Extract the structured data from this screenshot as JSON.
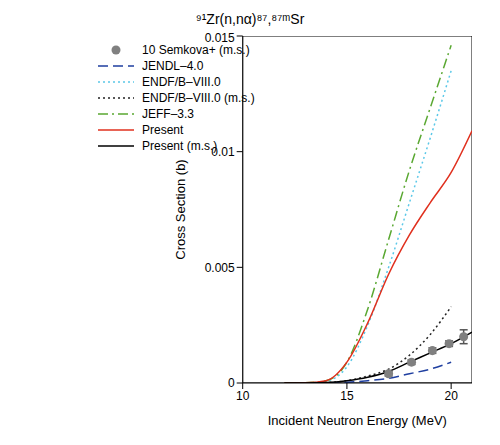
{
  "chart_data": {
    "type": "line",
    "title": "⁹¹Zr(n,nα)⁸⁷,⁸⁷ᵐSr",
    "x_label": "Incident Neutron Energy (MeV)",
    "y_label": "Cross Section (b)",
    "xlim": [
      10,
      21
    ],
    "xticks": [
      10,
      15,
      20
    ],
    "ylim": [
      0,
      0.015
    ],
    "yticks": [
      0,
      0.005,
      0.01,
      0.015
    ],
    "legend": "upper left",
    "series": [
      {
        "name": "10 Semkova+ (m.s.)",
        "type": "scatter",
        "marker": "circle",
        "color": "#808080",
        "x": [
          17.0,
          18.1,
          19.1,
          19.9,
          20.6
        ],
        "values": [
          0.0004,
          0.0009,
          0.0014,
          0.0017,
          0.002
        ],
        "errors": [
          0.0001,
          0.0001,
          0.00012,
          0.00012,
          0.0003
        ]
      },
      {
        "name": "JENDL–4.0",
        "type": "line",
        "line_style": "dashed",
        "color": "#1f3fa0",
        "x": [
          12,
          13,
          14,
          15,
          16,
          17,
          18,
          19,
          20
        ],
        "values": [
          0,
          0,
          1e-05,
          3e-05,
          0.0001,
          0.0002,
          0.0004,
          0.0006,
          0.0009
        ]
      },
      {
        "name": "ENDF/B–VIII.0",
        "type": "line",
        "line_style": "dotted",
        "color": "#5bc8e8",
        "x": [
          12,
          13,
          14,
          15,
          16,
          17,
          18,
          19,
          20
        ],
        "values": [
          0,
          1e-05,
          8e-05,
          0.0007,
          0.0025,
          0.005,
          0.0078,
          0.0106,
          0.0135
        ]
      },
      {
        "name": "ENDF/B–VIII.0 (m.s.)",
        "type": "line",
        "line_style": "dotted",
        "color": "#222222",
        "x": [
          12,
          13,
          14,
          15,
          16,
          17,
          18,
          19,
          20
        ],
        "values": [
          0,
          0,
          2e-05,
          0.0001,
          0.0003,
          0.0006,
          0.0012,
          0.0021,
          0.0033
        ]
      },
      {
        "name": "JEFF–3.3",
        "type": "line",
        "line_style": "dashdot",
        "color": "#5aa832",
        "x": [
          12,
          13,
          14,
          15,
          16,
          17,
          18,
          19,
          20
        ],
        "values": [
          0,
          1e-05,
          0.0001,
          0.0009,
          0.0032,
          0.0062,
          0.0092,
          0.0119,
          0.0146
        ]
      },
      {
        "name": "Present",
        "type": "line",
        "line_style": "solid",
        "color": "#e0301e",
        "x": [
          12,
          13,
          14,
          15,
          16,
          17,
          18,
          19,
          20,
          21
        ],
        "values": [
          0,
          1e-05,
          0.0001,
          0.0009,
          0.0026,
          0.0047,
          0.0064,
          0.0078,
          0.0091,
          0.0109
        ]
      },
      {
        "name": "Present (m.s.)",
        "type": "line",
        "line_style": "solid",
        "color": "#000000",
        "x": [
          12,
          13,
          14,
          15,
          16,
          17,
          18,
          19,
          20,
          21
        ],
        "values": [
          0,
          0,
          2e-05,
          0.0001,
          0.00025,
          0.0005,
          0.0009,
          0.0013,
          0.0017,
          0.0022
        ]
      }
    ]
  }
}
